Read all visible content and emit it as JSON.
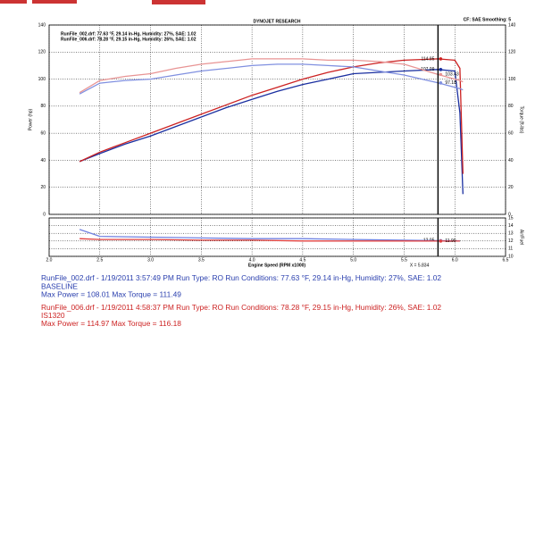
{
  "chart_data": [
    {
      "type": "line",
      "title": "DYNOJET RESEARCH",
      "subtitle": "CF: SAE  Smoothing: 5",
      "ylabel": "Power (hp)",
      "y2label": "Torque (ft-lbs)",
      "xlabel": "Engine Speed (RPM x1000)",
      "legend_lines": [
        "RunFile_002.drf: 77.63 °F, 29.14 in-Hg, Humidity: 27%, SAE: 1.02",
        "RunFile_006.drf: 78.28 °F, 29.15 in-Hg, Humidity: 26%, SAE: 1.02"
      ],
      "cursor": {
        "value": 5.834,
        "label": "X = 5.834"
      },
      "xlim": [
        2.0,
        6.5
      ],
      "xticks": [
        {
          "value": 2,
          "label": "2.0"
        },
        2.5,
        {
          "value": 3,
          "label": "3.0"
        },
        3.5,
        {
          "value": 4,
          "label": "4.0"
        },
        4.5,
        {
          "value": 5,
          "label": "5.0"
        },
        5.5,
        {
          "value": 6,
          "label": "6.0"
        },
        6.5
      ],
      "ylim": [
        0,
        140
      ],
      "yticks": [
        0,
        20,
        40,
        60,
        80,
        100,
        120,
        140
      ],
      "y2lim": [
        0,
        140
      ],
      "y2ticks": [
        0,
        20,
        40,
        60,
        80,
        100,
        120,
        140
      ],
      "grid": true,
      "x": [
        2.3,
        2.5,
        2.75,
        3.0,
        3.25,
        3.5,
        3.75,
        4.0,
        4.25,
        4.5,
        4.75,
        5.0,
        5.25,
        5.5,
        5.834,
        6.0,
        6.05,
        6.08
      ],
      "series": [
        {
          "color": "#1a2fa0",
          "values": [
            39,
            45,
            52,
            58,
            65,
            72,
            79,
            85,
            91,
            96,
            100,
            104,
            105,
            106,
            107.09,
            106,
            75,
            15
          ],
          "value_labels": [
            null,
            null,
            null,
            null,
            null,
            null,
            null,
            null,
            null,
            null,
            null,
            null,
            null,
            null,
            "107.09",
            null,
            null,
            null
          ]
        },
        {
          "color": "#cc2222",
          "values": [
            39,
            46,
            53,
            60,
            67,
            74,
            81,
            88,
            94,
            100,
            105,
            109,
            112,
            114,
            114.95,
            114,
            108,
            30
          ],
          "value_labels": [
            null,
            null,
            null,
            null,
            null,
            null,
            null,
            null,
            null,
            null,
            null,
            null,
            null,
            null,
            "114.95",
            null,
            null,
            null
          ]
        },
        {
          "color": "#8090e0",
          "axis": "y2",
          "values": [
            89,
            97,
            99,
            100,
            103,
            106,
            108,
            110,
            111,
            111,
            110,
            109,
            106,
            103,
            97.18,
            94,
            93,
            92
          ],
          "value_labels": [
            null,
            null,
            null,
            null,
            null,
            null,
            null,
            null,
            null,
            null,
            null,
            null,
            null,
            null,
            "97.18",
            null,
            null,
            null
          ]
        },
        {
          "color": "#e89494",
          "axis": "y2",
          "values": [
            90,
            99,
            102,
            104,
            108,
            111,
            113,
            115,
            115,
            115,
            114,
            114,
            113,
            111,
            103.43,
            100,
            99,
            98
          ],
          "value_labels": [
            null,
            null,
            null,
            null,
            null,
            null,
            null,
            null,
            null,
            null,
            null,
            null,
            null,
            null,
            "103.43",
            null,
            null,
            null
          ]
        }
      ]
    },
    {
      "type": "line",
      "y2label": "Air/Fuel",
      "xlim": [
        2.0,
        6.5
      ],
      "y2lim": [
        10,
        15
      ],
      "y2ticks": [
        10,
        11,
        12,
        13,
        14,
        15
      ],
      "x": [
        2.3,
        2.5,
        3.0,
        3.5,
        4.0,
        4.5,
        5.0,
        5.5,
        5.834,
        6.05
      ],
      "series": [
        {
          "color": "#7080e0",
          "axis": "y2",
          "values": [
            13.5,
            12.6,
            12.5,
            12.4,
            12.3,
            12.3,
            12.2,
            12.1,
            12.05,
            12.0
          ],
          "value_labels": [
            null,
            null,
            null,
            null,
            null,
            null,
            null,
            null,
            "12.05",
            null
          ]
        },
        {
          "color": "#e04040",
          "axis": "y2",
          "values": [
            12.3,
            12.2,
            12.2,
            12.1,
            12.1,
            12.0,
            12.0,
            12.0,
            11.99,
            11.99
          ],
          "value_labels": [
            null,
            null,
            null,
            null,
            null,
            null,
            null,
            null,
            "11.99",
            null
          ]
        }
      ]
    }
  ],
  "runs": [
    {
      "color": "#2a3fae",
      "lines": [
        "RunFile_002.drf - 1/19/2011 3:57:49 PM  Run Type: RO  Run Conditions: 77.63 °F, 29.14 in-Hg,  Humidity:  27%, SAE: 1.02",
        "BASELINE",
        "Max Power = 108.01  Max Torque = 111.49"
      ]
    },
    {
      "color": "#cc2222",
      "lines": [
        "RunFile_006.drf - 1/19/2011 4:58:37 PM  Run Type: RO  Run Conditions: 78.28 °F, 29.15 in-Hg,  Humidity:  26%, SAE: 1.02",
        "IS1320",
        "Max Power = 114.97  Max Torque = 116.18"
      ]
    }
  ]
}
